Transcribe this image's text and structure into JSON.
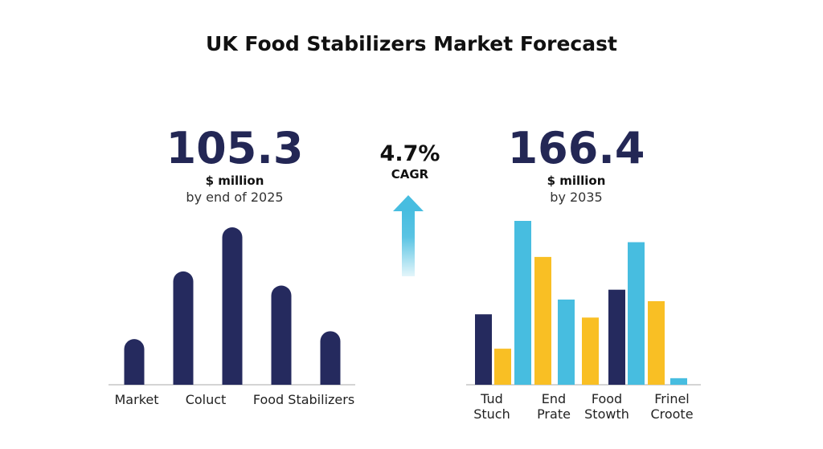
{
  "title": "UK Food Stabilizers Market Forecast",
  "left_stat": {
    "value": "105.3",
    "unit": "$ million",
    "note": "by end of 2025"
  },
  "cagr": {
    "value": "4.7%",
    "label": "CAGR"
  },
  "right_stat": {
    "value": "166.4",
    "unit": "$ million",
    "note": "by 2035"
  },
  "colors": {
    "navy": "#252a5e",
    "sky": "#47bde0",
    "gold": "#f9bf24",
    "arrow": "#47bde0"
  },
  "icons": {
    "growth_arrow": "arrow-up-icon"
  },
  "chart_data": [
    {
      "type": "bar",
      "title": "",
      "xlabel": "",
      "ylabel": "",
      "ylim": [
        0,
        100
      ],
      "grid": false,
      "legend": "none",
      "values": [
        29,
        72,
        100,
        63,
        34
      ],
      "tick_labels": [
        "Market",
        "Coluct",
        "Food Stabilizers"
      ]
    },
    {
      "type": "bar",
      "title": "",
      "xlabel": "",
      "ylabel": "",
      "ylim": [
        0,
        100
      ],
      "grid": false,
      "legend": "none",
      "categories": [
        "Tud\nStuch",
        "End\nPrate",
        "Food\nStowth",
        "Frinel\nCroote"
      ],
      "bars": [
        {
          "value": 43,
          "color": "navy"
        },
        {
          "value": 22,
          "color": "gold"
        },
        {
          "value": 100,
          "color": "sky"
        },
        {
          "value": 78,
          "color": "gold"
        },
        {
          "value": 52,
          "color": "sky"
        },
        {
          "value": 41,
          "color": "gold"
        },
        {
          "value": 58,
          "color": "navy"
        },
        {
          "value": 87,
          "color": "sky"
        },
        {
          "value": 51,
          "color": "gold"
        },
        {
          "value": 4,
          "color": "sky"
        }
      ]
    }
  ]
}
